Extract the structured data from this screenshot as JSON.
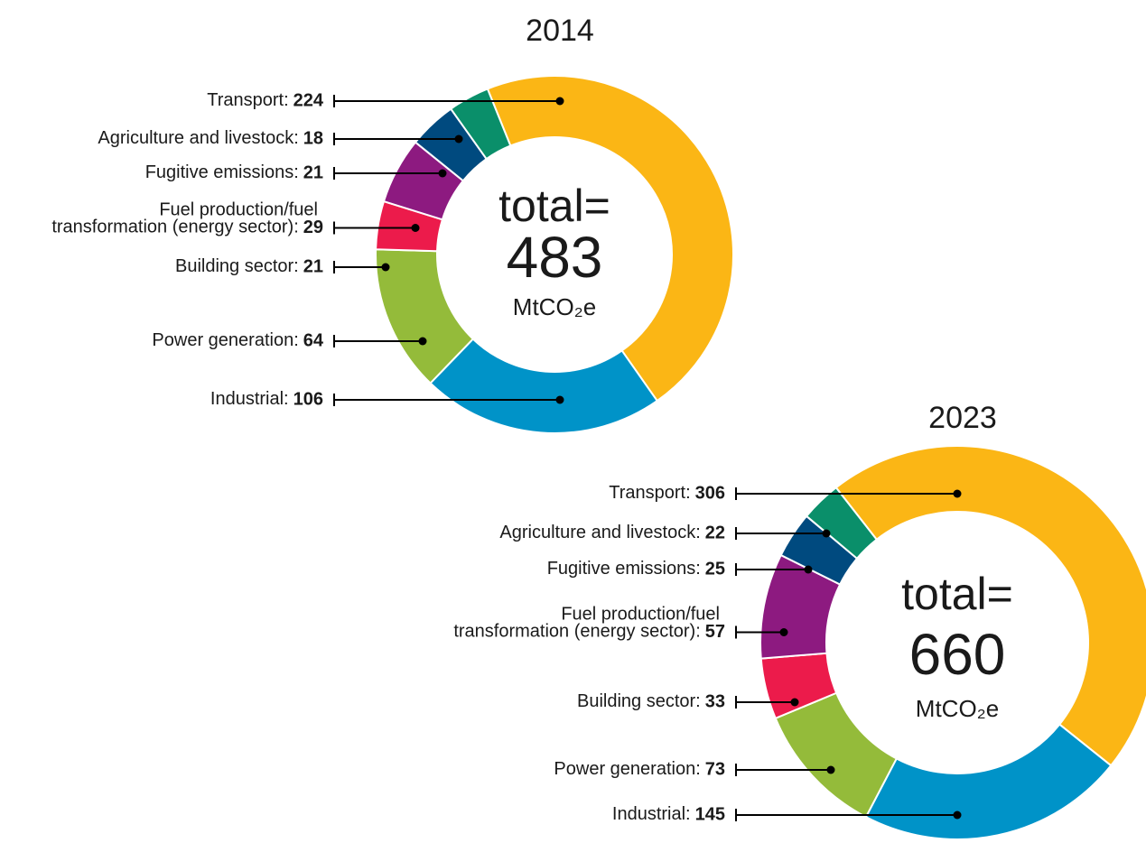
{
  "chart_data": [
    {
      "type": "donut",
      "title": "2014",
      "categories": [
        "Transport:",
        "Industrial:",
        "Power generation:",
        "Building sector:",
        "Fuel production/fuel\ntransformation (energy sector):",
        "Fugitive emissions:",
        "Agriculture and livestock:"
      ],
      "values": [
        224,
        106,
        64,
        21,
        29,
        21,
        18
      ],
      "colors": [
        "#fbb615",
        "#0093c8",
        "#94bb3a",
        "#ec1b4b",
        "#8d1a80",
        "#004a7f",
        "#0a8f6a"
      ],
      "center_label": "total=",
      "total": 483,
      "unit": "MtCO₂e"
    },
    {
      "type": "donut",
      "title": "2023",
      "categories": [
        "Transport:",
        "Industrial:",
        "Power generation:",
        "Building sector:",
        "Fuel production/fuel\ntransformation (energy sector):",
        "Fugitive emissions:",
        "Agriculture and livestock:"
      ],
      "values": [
        306,
        145,
        73,
        33,
        57,
        25,
        22
      ],
      "colors": [
        "#fbb615",
        "#0093c8",
        "#94bb3a",
        "#ec1b4b",
        "#8d1a80",
        "#004a7f",
        "#0a8f6a"
      ],
      "center_label": "total=",
      "total": 660,
      "unit": "MtCO₂e"
    }
  ]
}
